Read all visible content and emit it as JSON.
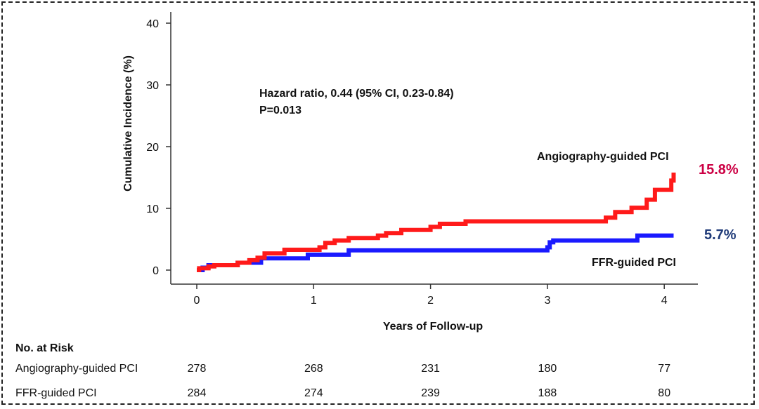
{
  "chart_data": {
    "type": "line",
    "title": "",
    "xlabel": "Years of Follow-up",
    "ylabel": "Cumulative Incidence (%)",
    "xlim": [
      0,
      4.2
    ],
    "ylim": [
      0,
      40
    ],
    "x_ticks": [
      0,
      1,
      2,
      3,
      4
    ],
    "y_ticks": [
      0,
      10,
      20,
      30,
      40
    ],
    "grid": false,
    "annotation": {
      "line1": "Hazard ratio, 0.44 (95%  CI, 0.23-0.84)",
      "line2": "P=0.013"
    },
    "series": [
      {
        "name": "Angiography-guided  PCI",
        "color": "#ff1a1a",
        "end_label": "15.8%",
        "end_label_color": "#cc0044",
        "points": [
          [
            0,
            0
          ],
          [
            0.02,
            0.3
          ],
          [
            0.1,
            0.6
          ],
          [
            0.15,
            0.8
          ],
          [
            0.35,
            1.2
          ],
          [
            0.45,
            1.6
          ],
          [
            0.52,
            2.0
          ],
          [
            0.58,
            2.7
          ],
          [
            0.75,
            3.3
          ],
          [
            0.9,
            3.3
          ],
          [
            1.05,
            3.7
          ],
          [
            1.1,
            4.4
          ],
          [
            1.18,
            4.8
          ],
          [
            1.3,
            5.2
          ],
          [
            1.55,
            5.6
          ],
          [
            1.62,
            6.0
          ],
          [
            1.75,
            6.5
          ],
          [
            2.0,
            7.0
          ],
          [
            2.08,
            7.5
          ],
          [
            2.3,
            7.9
          ],
          [
            3.5,
            7.9
          ],
          [
            3.5,
            8.5
          ],
          [
            3.58,
            9.4
          ],
          [
            3.72,
            10.1
          ],
          [
            3.85,
            11.4
          ],
          [
            3.92,
            13.0
          ],
          [
            4.05,
            13.0
          ],
          [
            4.06,
            14.5
          ],
          [
            4.08,
            15.8
          ]
        ]
      },
      {
        "name": "FFR-guided PCI",
        "color": "#1a1aff",
        "end_label": "5.7%",
        "end_label_color": "#1f3a78",
        "points": [
          [
            0,
            0
          ],
          [
            0.05,
            0.4
          ],
          [
            0.1,
            0.8
          ],
          [
            0.35,
            1.2
          ],
          [
            0.55,
            1.9
          ],
          [
            0.9,
            1.9
          ],
          [
            0.95,
            2.5
          ],
          [
            1.28,
            2.5
          ],
          [
            1.3,
            3.2
          ],
          [
            2.95,
            3.2
          ],
          [
            3.0,
            3.7
          ],
          [
            3.02,
            4.5
          ],
          [
            3.05,
            4.8
          ],
          [
            3.75,
            4.8
          ],
          [
            3.77,
            5.6
          ],
          [
            4.08,
            5.6
          ]
        ]
      }
    ]
  },
  "risk_table": {
    "title": "No. at Risk",
    "rows": [
      {
        "label": "Angiography-guided PCI",
        "values": [
          "278",
          "268",
          "231",
          "180",
          "77"
        ]
      },
      {
        "label": "FFR-guided PCI",
        "values": [
          "284",
          "274",
          "239",
          "188",
          "80"
        ]
      }
    ]
  },
  "colors": {
    "frame": "#222222",
    "axis": "#333333",
    "text": "#111111"
  }
}
